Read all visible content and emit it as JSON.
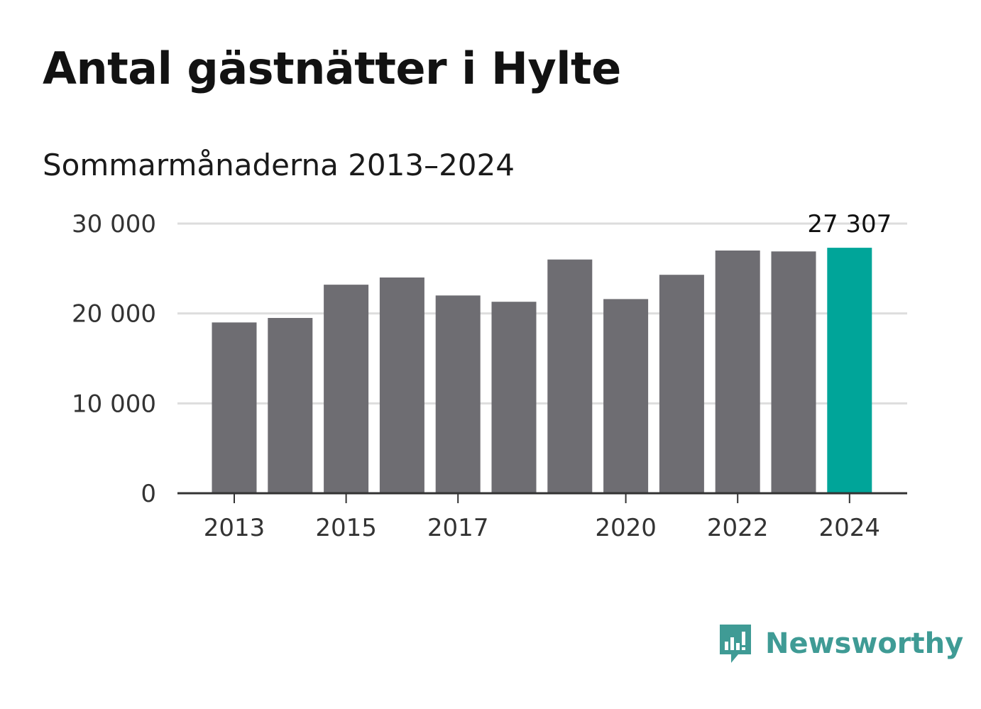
{
  "title": "Antal gästnätter i Hylte",
  "subtitle": "Sommarmånaderna 2013–2024",
  "brand": {
    "name": "Newsworthy",
    "color": "#3f9b95",
    "icon": "newsworthy-logo-icon"
  },
  "colors": {
    "bar": "#6e6d72",
    "highlight": "#00a599",
    "grid": "#dddddd",
    "axis": "#333333"
  },
  "chart_data": {
    "type": "bar",
    "title": "Antal gästnätter i Hylte",
    "subtitle": "Sommarmånaderna 2013–2024",
    "xlabel": "",
    "ylabel": "",
    "categories": [
      "2013",
      "2014",
      "2015",
      "2016",
      "2017",
      "2018",
      "2019",
      "2020",
      "2021",
      "2022",
      "2023",
      "2024"
    ],
    "values": [
      19000,
      19500,
      23200,
      24000,
      22000,
      21300,
      26000,
      21600,
      24300,
      27000,
      26900,
      27307
    ],
    "highlight_index": 11,
    "value_labels": [
      {
        "index": 11,
        "text": "27 307"
      }
    ],
    "ylim": [
      0,
      30000
    ],
    "y_ticks": [
      0,
      10000,
      20000,
      30000
    ],
    "y_tick_labels": [
      "0",
      "10 000",
      "20 000",
      "30 000"
    ],
    "x_tick_labels": [
      "2013",
      "2015",
      "2017",
      "2020",
      "2022",
      "2024"
    ],
    "grid": true,
    "legend": "none"
  }
}
